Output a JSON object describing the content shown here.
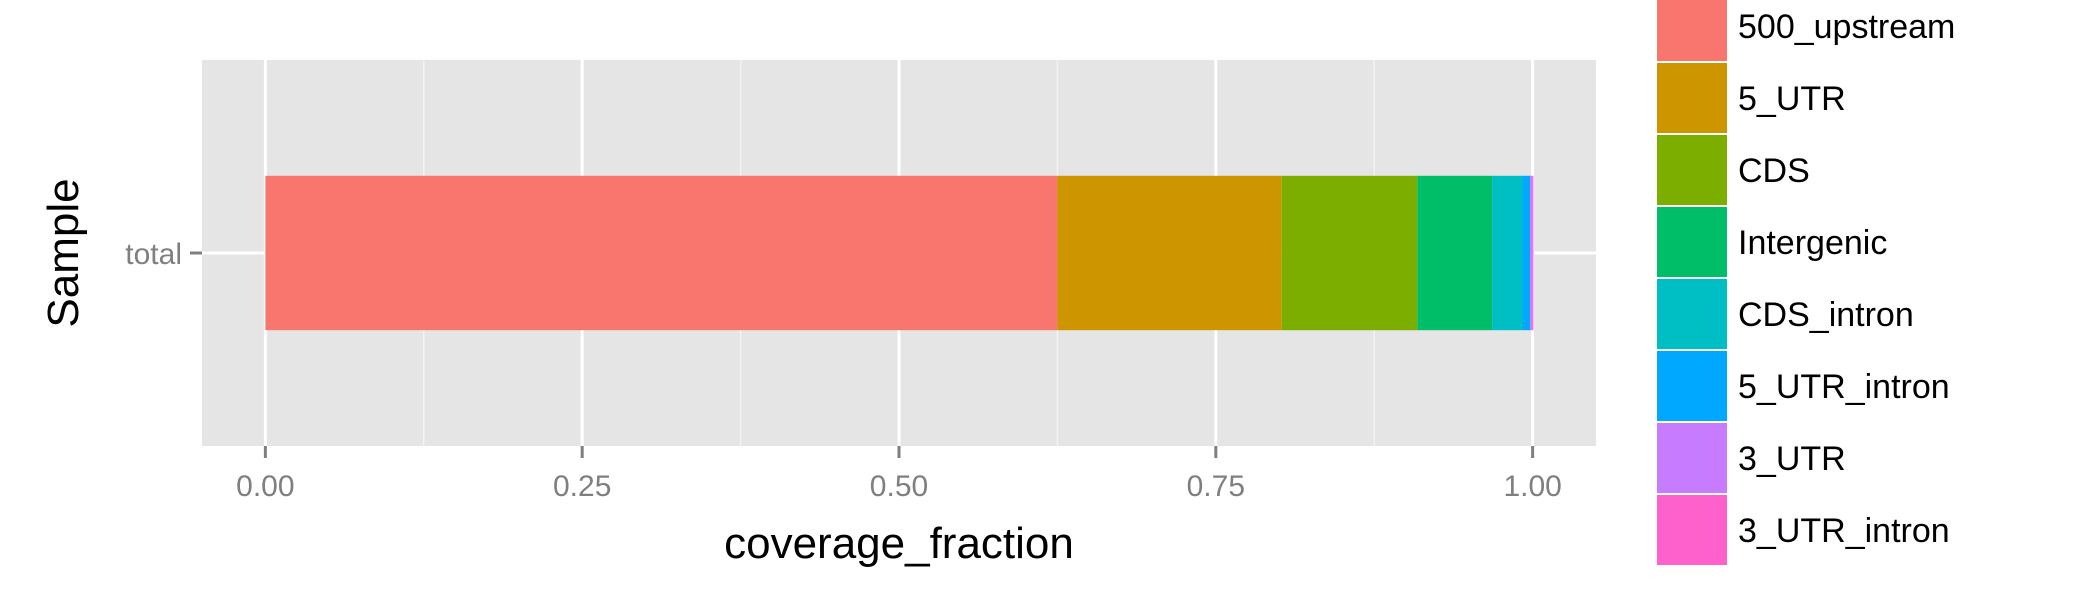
{
  "chart_data": {
    "type": "bar",
    "orientation": "horizontal",
    "stacked": true,
    "categories": [
      "total"
    ],
    "series": [
      {
        "name": "500_upstream",
        "values": [
          0.625
        ],
        "color": "#F8766D"
      },
      {
        "name": "5_UTR",
        "values": [
          0.177
        ],
        "color": "#CD9600"
      },
      {
        "name": "CDS",
        "values": [
          0.107
        ],
        "color": "#7CAE00"
      },
      {
        "name": "Intergenic",
        "values": [
          0.059
        ],
        "color": "#00BE67"
      },
      {
        "name": "CDS_intron",
        "values": [
          0.024
        ],
        "color": "#00BFC4"
      },
      {
        "name": "5_UTR_intron",
        "values": [
          0.006
        ],
        "color": "#00A9FF"
      },
      {
        "name": "3_UTR",
        "values": [
          0.002
        ],
        "color": "#C77CFF"
      },
      {
        "name": "3_UTR_intron",
        "values": [
          0.0005
        ],
        "color": "#FF61CC"
      }
    ],
    "title": "",
    "xlabel": "coverage_fraction",
    "ylabel": "Sample",
    "xlim": [
      -0.05,
      1.05
    ],
    "xticks": [
      "0.00",
      "0.25",
      "0.50",
      "0.75",
      "1.00"
    ],
    "grid": true,
    "legend_position": "right",
    "panel_color": "#E5E5E5"
  }
}
